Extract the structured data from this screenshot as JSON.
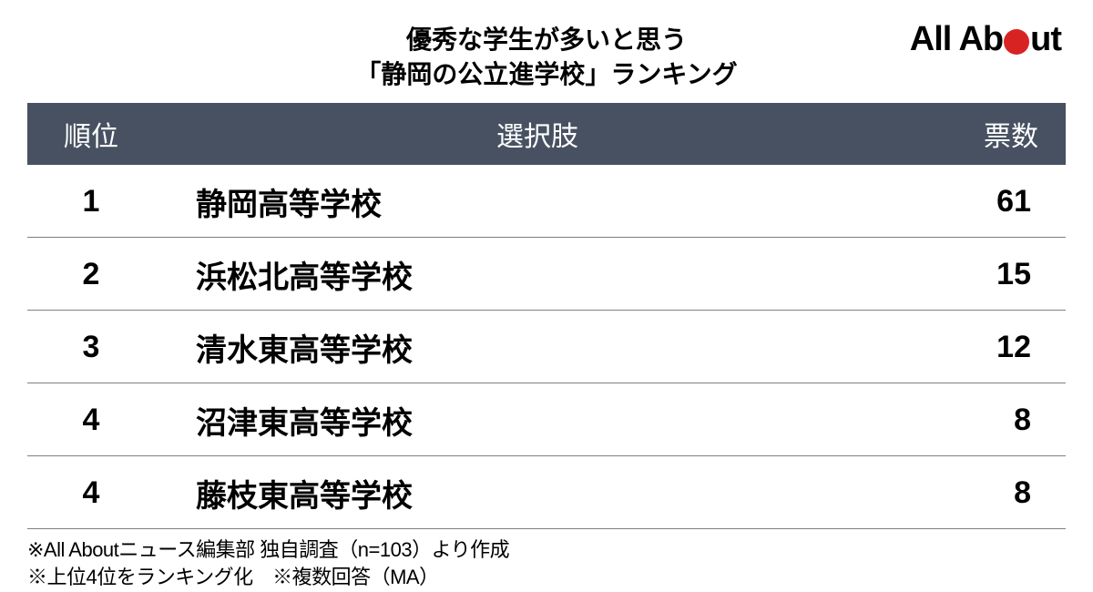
{
  "title": {
    "line1": "優秀な学生が多いと思う",
    "line2": "「静岡の公立進学校」ランキング"
  },
  "logo": {
    "text_before_dot": "All Ab",
    "text_after_dot": "ut",
    "dot_color": "#d82323"
  },
  "table": {
    "header_bg": "#475161",
    "header_text_color": "#ffffff",
    "border_color": "#808080",
    "columns": {
      "rank": "順位",
      "option": "選択肢",
      "votes": "票数"
    },
    "rows": [
      {
        "rank": "1",
        "option": "静岡高等学校",
        "votes": "61"
      },
      {
        "rank": "2",
        "option": "浜松北高等学校",
        "votes": "15"
      },
      {
        "rank": "3",
        "option": "清水東高等学校",
        "votes": "12"
      },
      {
        "rank": "4",
        "option": "沼津東高等学校",
        "votes": "8"
      },
      {
        "rank": "4",
        "option": "藤枝東高等学校",
        "votes": "8"
      }
    ]
  },
  "footnotes": {
    "line1": "※All Aboutニュース編集部 独自調査（n=103）より作成",
    "line2": "※上位4位をランキング化　※複数回答（MA）"
  },
  "styling": {
    "title_fontsize": 28,
    "header_fontsize": 30,
    "cell_fontsize": 34,
    "footnote_fontsize": 22,
    "body_bg": "#ffffff",
    "text_color": "#000000"
  }
}
